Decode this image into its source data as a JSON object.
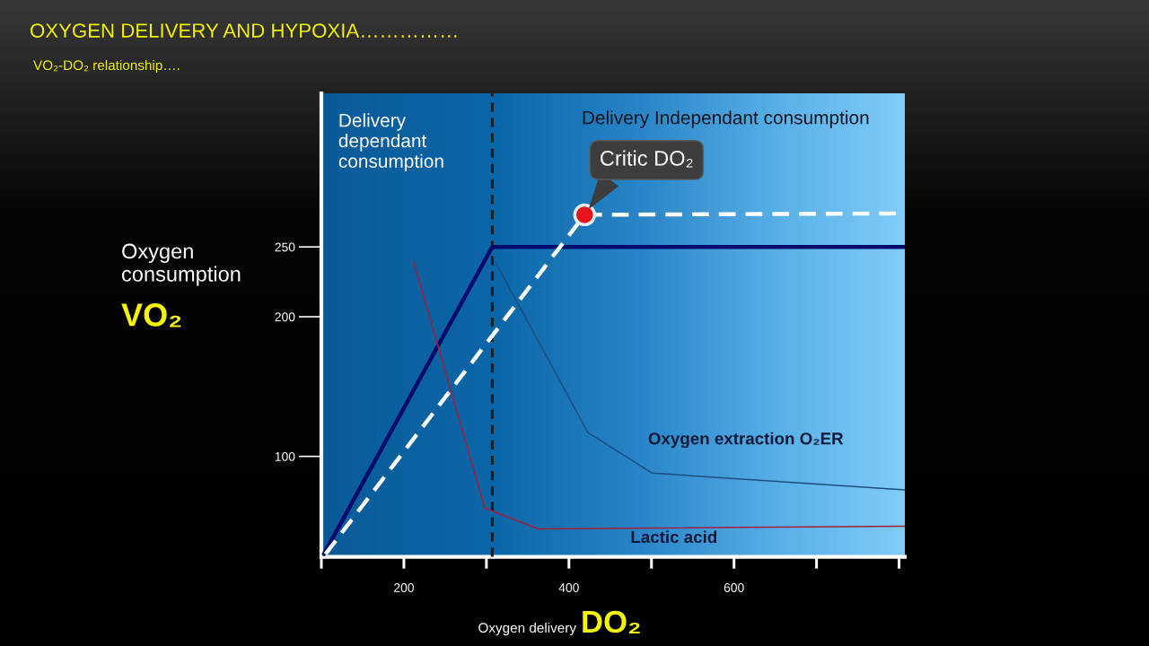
{
  "chart_data": {
    "type": "line",
    "title": "OXYGEN DELIVERY AND HYPOXIA……………",
    "subtitle": "VO₂-DO₂ relationship….",
    "xlabel": "Oxygen delivery DO₂",
    "ylabel": "Oxygen\nconsumption\nVO₂",
    "xlim": [
      100,
      807
    ],
    "xticks": [
      {
        "value": 100,
        "label": null
      },
      200,
      {
        "value": 300,
        "label": null
      },
      400,
      {
        "value": 500,
        "label": null
      },
      600,
      {
        "value": 700,
        "label": null
      },
      {
        "value": 800,
        "label": null
      }
    ],
    "ylim": [
      28,
      360
    ],
    "yticks": [
      100,
      200,
      250
    ],
    "grid": false,
    "series": [
      {
        "color": "#020a6b",
        "x": [
          103,
          307,
          807
        ],
        "values": [
          30,
          250,
          250
        ],
        "line_style": "solid"
      },
      {
        "color": "#ffffff",
        "x": [
          105,
          419,
          807
        ],
        "values": [
          30,
          273,
          274
        ],
        "line_style": "dashed"
      },
      {
        "name": "Lactic acid",
        "color": "#a0203a",
        "x": [
          212,
          298,
          363,
          807
        ],
        "values": [
          239,
          63,
          48,
          50
        ],
        "line_style": "solid"
      },
      {
        "name": "Oxygen extraction O₂ER",
        "color": "#1d4e80",
        "x": [
          311,
          423,
          501,
          807
        ],
        "values": [
          239,
          117,
          88,
          76
        ],
        "line_style": "solid"
      },
      {
        "type": "scatter",
        "color": "#e8141c",
        "x": [
          419
        ],
        "values": [
          273
        ],
        "marker": "circle"
      }
    ],
    "ref_lines": [
      {
        "axis": "x",
        "value": 307,
        "color": "#1a1a1a",
        "line_style": "dashed"
      }
    ],
    "annotations": [
      "Delivery\ndependant\nconsumption",
      "Delivery Independant consumption",
      {
        "text": "Critic DO₂",
        "x": 419,
        "y": 273
      }
    ]
  }
}
